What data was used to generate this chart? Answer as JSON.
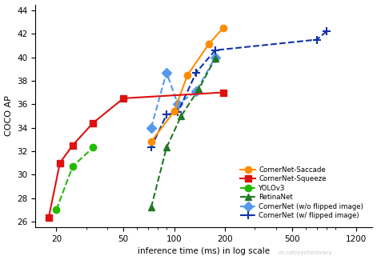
{
  "title": "",
  "xlabel": "inference time (ms) in log scale",
  "ylabel": "COCO AP",
  "xlim": [
    15,
    1500
  ],
  "ylim": [
    25.5,
    44.5
  ],
  "yticks": [
    26,
    28,
    30,
    32,
    34,
    36,
    38,
    40,
    42,
    44
  ],
  "xticks": [
    20,
    50,
    100,
    200,
    500,
    1200
  ],
  "xtick_labels": [
    "20",
    "50",
    "100",
    "200",
    "500",
    "1200"
  ],
  "cornernet_saccade": {
    "x": [
      73,
      100,
      120,
      160,
      195
    ],
    "y": [
      32.8,
      35.4,
      38.5,
      41.1,
      42.5
    ],
    "color": "#FF8C00",
    "marker": "o",
    "linestyle": "-",
    "label": "CornerNet-Saccade"
  },
  "cornernet_squeeze": {
    "x": [
      18,
      21,
      25,
      33,
      50,
      195
    ],
    "y": [
      26.3,
      31.0,
      32.5,
      34.4,
      36.5,
      37.0
    ],
    "color": "#DD1111",
    "marker": "s",
    "linestyle": "-",
    "label": "CornerNet-Squeeze"
  },
  "yolov3": {
    "x": [
      20,
      25,
      33
    ],
    "y": [
      27.0,
      30.7,
      32.3
    ],
    "color": "#22BB00",
    "marker": "o",
    "linestyle": "--",
    "label": "YOLOv3"
  },
  "retinanet": {
    "x": [
      73,
      90,
      110,
      140,
      175
    ],
    "y": [
      27.2,
      32.3,
      35.0,
      37.3,
      39.9
    ],
    "color": "#227722",
    "marker": "^",
    "linestyle": "--",
    "label": "RetinaNet"
  },
  "cornernet_wo_flip": {
    "x": [
      73,
      90,
      105,
      135,
      175
    ],
    "y": [
      34.0,
      38.7,
      36.0,
      37.1,
      40.0
    ],
    "color": "#5599EE",
    "marker": "D",
    "linestyle": "--",
    "label": "CornerNet (w/o flipped image)"
  },
  "cornernet_w_flip": {
    "x": [
      73,
      90,
      105,
      135,
      175,
      700,
      800
    ],
    "y": [
      32.3,
      35.1,
      35.3,
      38.7,
      40.6,
      41.5,
      42.2
    ],
    "color": "#1133AA",
    "marker": "P",
    "linestyle": "--",
    "label": "CornerNet (w/ flipped image)"
  },
  "watermark": "cn.net/yychentracy",
  "background_color": "#ffffff"
}
